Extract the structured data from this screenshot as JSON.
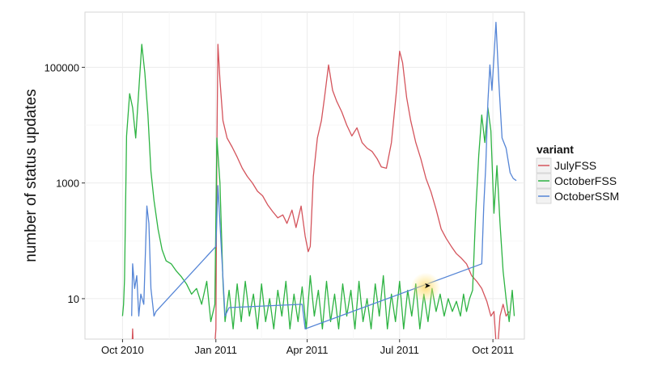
{
  "chart_data": {
    "type": "line",
    "title": "",
    "xlabel": "",
    "ylabel": "number of status updates",
    "y_scale": "log10",
    "ylim": [
      2,
      900000
    ],
    "xlim": [
      "2010-08-25",
      "2011-11-01"
    ],
    "grid": true,
    "x_ticks": [
      {
        "date": "2010-10-01",
        "label": "Oct 2010"
      },
      {
        "date": "2011-01-01",
        "label": "Jan 2011"
      },
      {
        "date": "2011-04-01",
        "label": "Apr 2011"
      },
      {
        "date": "2011-07-01",
        "label": "Jul 2011"
      },
      {
        "date": "2011-10-01",
        "label": "Oct 2011"
      }
    ],
    "y_ticks": [
      {
        "value": 10,
        "label": "10"
      },
      {
        "value": 1000,
        "label": "1000"
      },
      {
        "value": 100000,
        "label": "100000"
      }
    ],
    "legend": {
      "title": "variant",
      "position": "right"
    },
    "series": [
      {
        "name": "JulyFSS",
        "color": "#d4545c",
        "points": [
          [
            "2010-10-10",
            1
          ],
          [
            "2010-10-11",
            3
          ],
          [
            "2010-10-12",
            1
          ],
          [
            "2010-12-30",
            1
          ],
          [
            "2011-01-01",
            3
          ],
          [
            "2011-01-02",
            4000
          ],
          [
            "2011-01-03",
            250000
          ],
          [
            "2011-01-05",
            60000
          ],
          [
            "2011-01-08",
            12000
          ],
          [
            "2011-01-12",
            6000
          ],
          [
            "2011-01-17",
            4200
          ],
          [
            "2011-01-22",
            2800
          ],
          [
            "2011-01-27",
            1800
          ],
          [
            "2011-02-01",
            1300
          ],
          [
            "2011-02-06",
            1000
          ],
          [
            "2011-02-11",
            720
          ],
          [
            "2011-02-16",
            600
          ],
          [
            "2011-02-21",
            420
          ],
          [
            "2011-02-26",
            320
          ],
          [
            "2011-03-03",
            250
          ],
          [
            "2011-03-08",
            280
          ],
          [
            "2011-03-12",
            200
          ],
          [
            "2011-03-17",
            340
          ],
          [
            "2011-03-21",
            170
          ],
          [
            "2011-03-26",
            400
          ],
          [
            "2011-03-30",
            120
          ],
          [
            "2011-04-02",
            65
          ],
          [
            "2011-04-04",
            80
          ],
          [
            "2011-04-07",
            1300
          ],
          [
            "2011-04-11",
            6000
          ],
          [
            "2011-04-15",
            12000
          ],
          [
            "2011-04-18",
            30000
          ],
          [
            "2011-04-22",
            110000
          ],
          [
            "2011-04-26",
            40000
          ],
          [
            "2011-04-30",
            26000
          ],
          [
            "2011-05-05",
            17000
          ],
          [
            "2011-05-10",
            10000
          ],
          [
            "2011-05-15",
            6500
          ],
          [
            "2011-05-20",
            9000
          ],
          [
            "2011-05-25",
            5000
          ],
          [
            "2011-05-30",
            4000
          ],
          [
            "2011-06-04",
            3500
          ],
          [
            "2011-06-09",
            2600
          ],
          [
            "2011-06-13",
            1900
          ],
          [
            "2011-06-18",
            1800
          ],
          [
            "2011-06-23",
            5000
          ],
          [
            "2011-06-28",
            40000
          ],
          [
            "2011-07-01",
            190000
          ],
          [
            "2011-07-04",
            120000
          ],
          [
            "2011-07-08",
            30000
          ],
          [
            "2011-07-12",
            12000
          ],
          [
            "2011-07-17",
            5000
          ],
          [
            "2011-07-22",
            2600
          ],
          [
            "2011-07-27",
            1200
          ],
          [
            "2011-08-01",
            700
          ],
          [
            "2011-08-06",
            350
          ],
          [
            "2011-08-11",
            160
          ],
          [
            "2011-08-16",
            110
          ],
          [
            "2011-08-21",
            80
          ],
          [
            "2011-08-26",
            60
          ],
          [
            "2011-08-31",
            50
          ],
          [
            "2011-09-05",
            40
          ],
          [
            "2011-09-10",
            25
          ],
          [
            "2011-09-15",
            20
          ],
          [
            "2011-09-20",
            15
          ],
          [
            "2011-09-25",
            9
          ],
          [
            "2011-09-29",
            5
          ],
          [
            "2011-10-02",
            6
          ],
          [
            "2011-10-05",
            1
          ],
          [
            "2011-10-08",
            5
          ],
          [
            "2011-10-11",
            8
          ],
          [
            "2011-10-14",
            5
          ],
          [
            "2011-10-17",
            6
          ]
        ]
      },
      {
        "name": "OctoberFSS",
        "color": "#2db342",
        "points": [
          [
            "2010-10-01",
            5
          ],
          [
            "2010-10-02",
            8
          ],
          [
            "2010-10-03",
            22
          ],
          [
            "2010-10-05",
            6500
          ],
          [
            "2010-10-08",
            35000
          ],
          [
            "2010-10-11",
            20000
          ],
          [
            "2010-10-14",
            6000
          ],
          [
            "2010-10-17",
            40000
          ],
          [
            "2010-10-20",
            250000
          ],
          [
            "2010-10-23",
            80000
          ],
          [
            "2010-10-26",
            15000
          ],
          [
            "2010-10-29",
            1600
          ],
          [
            "2010-11-01",
            500
          ],
          [
            "2010-11-05",
            160
          ],
          [
            "2010-11-09",
            70
          ],
          [
            "2010-11-13",
            45
          ],
          [
            "2010-11-18",
            40
          ],
          [
            "2010-11-23",
            30
          ],
          [
            "2010-11-28",
            24
          ],
          [
            "2010-12-03",
            18
          ],
          [
            "2010-12-08",
            12
          ],
          [
            "2010-12-13",
            15
          ],
          [
            "2010-12-18",
            8
          ],
          [
            "2010-12-23",
            20
          ],
          [
            "2010-12-27",
            4
          ],
          [
            "2010-12-31",
            8
          ],
          [
            "2011-01-02",
            6000
          ],
          [
            "2011-01-05",
            1000
          ],
          [
            "2011-01-08",
            20
          ],
          [
            "2011-01-10",
            4
          ],
          [
            "2011-01-14",
            14
          ],
          [
            "2011-01-18",
            3
          ],
          [
            "2011-01-22",
            18
          ],
          [
            "2011-01-26",
            4
          ],
          [
            "2011-01-30",
            20
          ],
          [
            "2011-02-03",
            5
          ],
          [
            "2011-02-07",
            12
          ],
          [
            "2011-02-11",
            3
          ],
          [
            "2011-02-15",
            18
          ],
          [
            "2011-02-19",
            4
          ],
          [
            "2011-02-23",
            10
          ],
          [
            "2011-02-27",
            3
          ],
          [
            "2011-03-03",
            14
          ],
          [
            "2011-03-07",
            5
          ],
          [
            "2011-03-11",
            20
          ],
          [
            "2011-03-15",
            3
          ],
          [
            "2011-03-19",
            12
          ],
          [
            "2011-03-23",
            4
          ],
          [
            "2011-03-27",
            16
          ],
          [
            "2011-03-31",
            3
          ],
          [
            "2011-04-04",
            25
          ],
          [
            "2011-04-08",
            5
          ],
          [
            "2011-04-12",
            14
          ],
          [
            "2011-04-16",
            3
          ],
          [
            "2011-04-20",
            20
          ],
          [
            "2011-04-24",
            4
          ],
          [
            "2011-04-28",
            12
          ],
          [
            "2011-05-02",
            3
          ],
          [
            "2011-05-06",
            18
          ],
          [
            "2011-05-10",
            5
          ],
          [
            "2011-05-14",
            14
          ],
          [
            "2011-05-18",
            3
          ],
          [
            "2011-05-22",
            20
          ],
          [
            "2011-05-26",
            4
          ],
          [
            "2011-05-30",
            10
          ],
          [
            "2011-06-03",
            3
          ],
          [
            "2011-06-07",
            18
          ],
          [
            "2011-06-11",
            5
          ],
          [
            "2011-06-15",
            25
          ],
          [
            "2011-06-19",
            3
          ],
          [
            "2011-06-23",
            12
          ],
          [
            "2011-06-27",
            4
          ],
          [
            "2011-07-01",
            20
          ],
          [
            "2011-07-05",
            3
          ],
          [
            "2011-07-09",
            14
          ],
          [
            "2011-07-13",
            5
          ],
          [
            "2011-07-17",
            18
          ],
          [
            "2011-07-21",
            3
          ],
          [
            "2011-07-25",
            12
          ],
          [
            "2011-07-29",
            4
          ],
          [
            "2011-08-02",
            15
          ],
          [
            "2011-08-06",
            6
          ],
          [
            "2011-08-10",
            12
          ],
          [
            "2011-08-14",
            5
          ],
          [
            "2011-08-18",
            10
          ],
          [
            "2011-08-22",
            6
          ],
          [
            "2011-08-26",
            9
          ],
          [
            "2011-08-30",
            5
          ],
          [
            "2011-09-02",
            12
          ],
          [
            "2011-09-05",
            6
          ],
          [
            "2011-09-08",
            10
          ],
          [
            "2011-09-11",
            14
          ],
          [
            "2011-09-14",
            300
          ],
          [
            "2011-09-17",
            3000
          ],
          [
            "2011-09-20",
            15000
          ],
          [
            "2011-09-23",
            5000
          ],
          [
            "2011-09-26",
            20000
          ],
          [
            "2011-09-29",
            8000
          ],
          [
            "2011-10-02",
            300
          ],
          [
            "2011-10-05",
            2000
          ],
          [
            "2011-10-08",
            200
          ],
          [
            "2011-10-11",
            30
          ],
          [
            "2011-10-14",
            10
          ],
          [
            "2011-10-17",
            4
          ],
          [
            "2011-10-20",
            14
          ],
          [
            "2011-10-22",
            5
          ]
        ]
      },
      {
        "name": "OctoberSSM",
        "color": "#5585d6",
        "points": [
          [
            "2010-10-10",
            5
          ],
          [
            "2010-10-11",
            40
          ],
          [
            "2010-10-13",
            15
          ],
          [
            "2010-10-15",
            25
          ],
          [
            "2010-10-17",
            5
          ],
          [
            "2010-10-19",
            12
          ],
          [
            "2010-10-22",
            8
          ],
          [
            "2010-10-25",
            400
          ],
          [
            "2010-10-27",
            200
          ],
          [
            "2010-10-29",
            15
          ],
          [
            "2010-11-01",
            5
          ],
          [
            "2010-11-03",
            6
          ],
          [
            "2011-01-01",
            80
          ],
          [
            "2011-01-03",
            900
          ],
          [
            "2011-01-06",
            100
          ],
          [
            "2011-01-10",
            5
          ],
          [
            "2011-01-14",
            7
          ],
          [
            "2011-03-27",
            8
          ],
          [
            "2011-03-30",
            3
          ],
          [
            "2011-09-20",
            40
          ],
          [
            "2011-09-22",
            400
          ],
          [
            "2011-09-24",
            2000
          ],
          [
            "2011-09-26",
            25000
          ],
          [
            "2011-09-28",
            110000
          ],
          [
            "2011-09-30",
            40000
          ],
          [
            "2011-10-02",
            150000
          ],
          [
            "2011-10-04",
            600000
          ],
          [
            "2011-10-07",
            50000
          ],
          [
            "2011-10-10",
            6000
          ],
          [
            "2011-10-14",
            4000
          ],
          [
            "2011-10-18",
            1500
          ],
          [
            "2011-10-21",
            1200
          ],
          [
            "2011-10-24",
            1100
          ]
        ]
      }
    ]
  }
}
